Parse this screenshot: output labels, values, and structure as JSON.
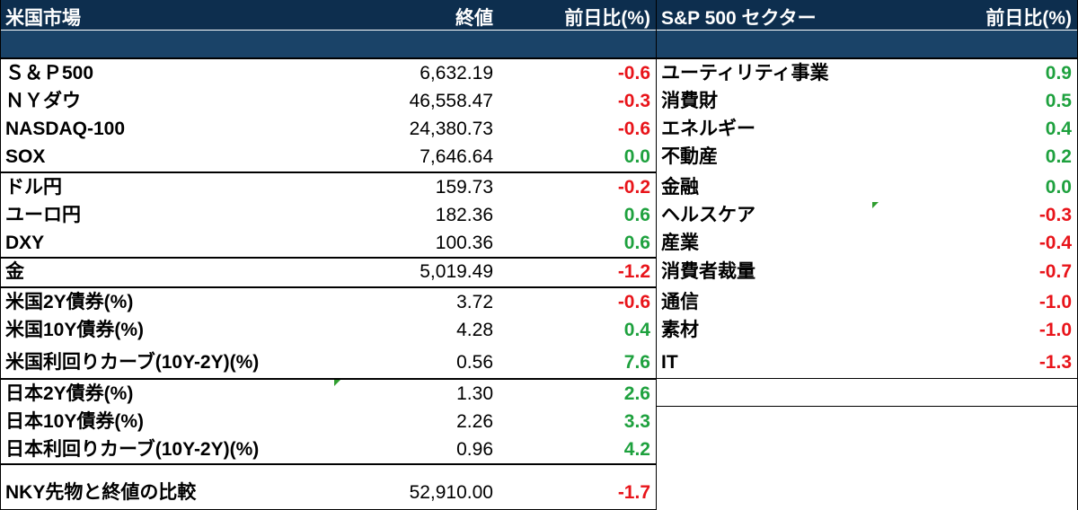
{
  "colors": {
    "header_bg": "#0d2e4e",
    "subheader_bg": "#1a4368",
    "positive": "#1ea13e",
    "negative": "#e8141a"
  },
  "market": {
    "headers": {
      "name": "米国市場",
      "close": "終値",
      "change": "前日比(%)"
    },
    "rows": [
      {
        "label": "Ｓ＆Ｐ500",
        "value": "6,632.19",
        "change": "-0.6",
        "dir": "neg"
      },
      {
        "label": "ＮＹダウ",
        "value": "46,558.47",
        "change": "-0.3",
        "dir": "neg"
      },
      {
        "label": "NASDAQ-100",
        "value": "24,380.73",
        "change": "-0.6",
        "dir": "neg"
      },
      {
        "label": "SOX",
        "value": "7,646.64",
        "change": "0.0",
        "dir": "pos"
      },
      {
        "label": "ドル円",
        "value": "159.73",
        "change": "-0.2",
        "dir": "neg"
      },
      {
        "label": "ユーロ円",
        "value": "182.36",
        "change": "0.6",
        "dir": "pos"
      },
      {
        "label": "DXY",
        "value": "100.36",
        "change": "0.6",
        "dir": "pos"
      },
      {
        "label": "金",
        "value": "5,019.49",
        "change": "-1.2",
        "dir": "neg"
      },
      {
        "label": "米国2Y債券(%)",
        "value": "3.72",
        "change": "-0.6",
        "dir": "neg"
      },
      {
        "label": "米国10Y債券(%)",
        "value": "4.28",
        "change": "0.4",
        "dir": "pos"
      },
      {
        "label": "米国利回りカーブ(10Y-2Y)(%)",
        "value": "0.56",
        "change": "7.6",
        "dir": "pos"
      },
      {
        "label": "日本2Y債券(%)",
        "value": "1.30",
        "change": "2.6",
        "dir": "pos"
      },
      {
        "label": "日本10Y債券(%)",
        "value": "2.26",
        "change": "3.3",
        "dir": "pos"
      },
      {
        "label": "日本利回りカーブ(10Y-2Y)(%)",
        "value": "0.96",
        "change": "4.2",
        "dir": "pos"
      },
      {
        "label": "NKY先物と終値の比較",
        "value": "52,910.00",
        "change": "-1.7",
        "dir": "neg"
      }
    ]
  },
  "sectors": {
    "headers": {
      "name": "S&P 500 セクター",
      "change": "前日比(%)"
    },
    "rows": [
      {
        "label": "ユーティリティ事業",
        "change": "0.9",
        "dir": "pos"
      },
      {
        "label": "消費財",
        "change": "0.5",
        "dir": "pos"
      },
      {
        "label": "エネルギー",
        "change": "0.4",
        "dir": "pos"
      },
      {
        "label": "不動産",
        "change": "0.2",
        "dir": "pos"
      },
      {
        "label": "金融",
        "change": "0.0",
        "dir": "pos"
      },
      {
        "label": "ヘルスケア",
        "change": "-0.3",
        "dir": "neg"
      },
      {
        "label": "産業",
        "change": "-0.4",
        "dir": "neg"
      },
      {
        "label": "消費者裁量",
        "change": "-0.7",
        "dir": "neg"
      },
      {
        "label": "通信",
        "change": "-1.0",
        "dir": "neg"
      },
      {
        "label": "素材",
        "change": "-1.0",
        "dir": "neg"
      },
      {
        "label": "IT",
        "change": "-1.3",
        "dir": "neg"
      }
    ]
  }
}
